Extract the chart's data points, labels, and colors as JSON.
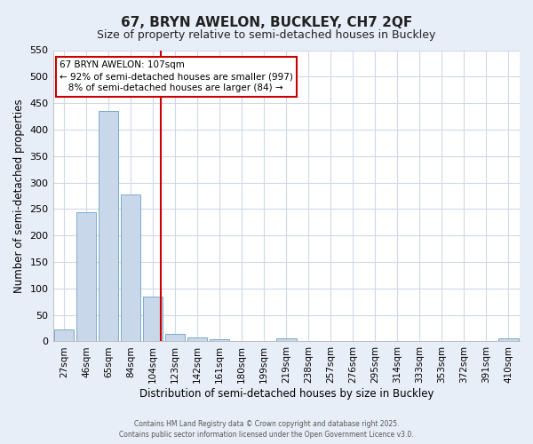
{
  "title": "67, BRYN AWELON, BUCKLEY, CH7 2QF",
  "subtitle": "Size of property relative to semi-detached houses in Buckley",
  "xlabel": "Distribution of semi-detached houses by size in Buckley",
  "ylabel": "Number of semi-detached properties",
  "bin_labels": [
    "27sqm",
    "46sqm",
    "65sqm",
    "84sqm",
    "104sqm",
    "123sqm",
    "142sqm",
    "161sqm",
    "180sqm",
    "199sqm",
    "219sqm",
    "238sqm",
    "257sqm",
    "276sqm",
    "295sqm",
    "314sqm",
    "333sqm",
    "353sqm",
    "372sqm",
    "391sqm",
    "410sqm"
  ],
  "bar_heights": [
    22,
    244,
    435,
    278,
    85,
    14,
    8,
    4,
    0,
    0,
    5,
    0,
    0,
    0,
    0,
    0,
    0,
    0,
    0,
    0,
    5
  ],
  "bar_color": "#c8d8ea",
  "bar_edgecolor": "#7aaacc",
  "vline_x_index": 4.37,
  "vline_color": "#cc0000",
  "annotation_line1": "67 BRYN AWELON: 107sqm",
  "annotation_line2": "← 92% of semi-detached houses are smaller (997)",
  "annotation_line3": "   8% of semi-detached houses are larger (84) →",
  "annotation_box_color": "#cc0000",
  "ylim": [
    0,
    550
  ],
  "yticks": [
    0,
    50,
    100,
    150,
    200,
    250,
    300,
    350,
    400,
    450,
    500,
    550
  ],
  "ax_background_color": "#ffffff",
  "fig_background_color": "#e8eef8",
  "grid_color": "#d0d8e8",
  "footer_line1": "Contains HM Land Registry data © Crown copyright and database right 2025.",
  "footer_line2": "Contains public sector information licensed under the Open Government Licence v3.0.",
  "title_fontsize": 11,
  "subtitle_fontsize": 9
}
